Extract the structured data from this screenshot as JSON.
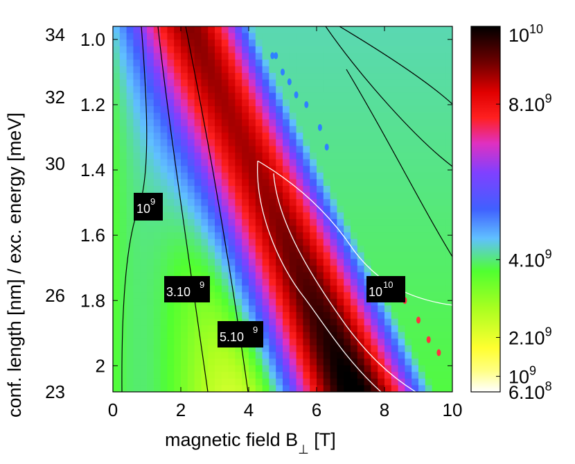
{
  "chart_data": {
    "type": "heatmap",
    "title": "",
    "xlabel": "magnetic field B",
    "xlabel_subscript": "⊥",
    "xlabel_unit": " [T]",
    "ylabel": "conf. length [nm] / exc. energy [meV]",
    "xlim": [
      0,
      10
    ],
    "x_ticks": [
      0,
      2,
      4,
      6,
      8,
      10
    ],
    "y_left_ticks": [
      {
        "value": 34,
        "label": "34"
      },
      {
        "value": 32,
        "label": "32"
      },
      {
        "value": 30,
        "label": "30"
      },
      {
        "value": 26,
        "label": "26"
      },
      {
        "value": 23,
        "label": "23"
      }
    ],
    "y_inner_ticks": [
      {
        "value": 1.0,
        "label": "1.0"
      },
      {
        "value": 1.2,
        "label": "1.2"
      },
      {
        "value": 1.4,
        "label": "1.4"
      },
      {
        "value": 1.6,
        "label": "1.6"
      },
      {
        "value": 1.8,
        "label": "1.8"
      },
      {
        "value": 2.0,
        "label": "2"
      }
    ],
    "ylim_conf_length": [
      0.96,
      2.08
    ],
    "colorbar": {
      "scale": "linear",
      "range": [
        600000000.0,
        10000000000.0
      ],
      "ticks": [
        {
          "value": 600000000.0,
          "mantissa": "6.10",
          "exponent": "8"
        },
        {
          "value": 1000000000.0,
          "mantissa": "10",
          "exponent": "9"
        },
        {
          "value": 2000000000.0,
          "mantissa": "2.10",
          "exponent": "9"
        },
        {
          "value": 4000000000.0,
          "mantissa": "4.10",
          "exponent": "9"
        },
        {
          "value": 8000000000.0,
          "mantissa": "8.10",
          "exponent": "9"
        },
        {
          "value": 10000000000.0,
          "mantissa": "10",
          "exponent": "10"
        }
      ],
      "colormap": [
        "#ffffff",
        "#ffff40",
        "#b0ff20",
        "#50ff30",
        "#60c0ff",
        "#4060ff",
        "#8040ff",
        "#e030c0",
        "#ff2020",
        "#d00000",
        "#600000",
        "#000000"
      ]
    },
    "contour_labels": [
      {
        "mantissa": "10",
        "exponent": "9",
        "value": 1000000000.0
      },
      {
        "mantissa": "3.10",
        "exponent": "9",
        "value": 3000000000.0
      },
      {
        "mantissa": "5.10",
        "exponent": "9",
        "value": 5000000000.0
      },
      {
        "mantissa": "10",
        "exponent": "10",
        "value": 10000000000.0
      }
    ]
  }
}
